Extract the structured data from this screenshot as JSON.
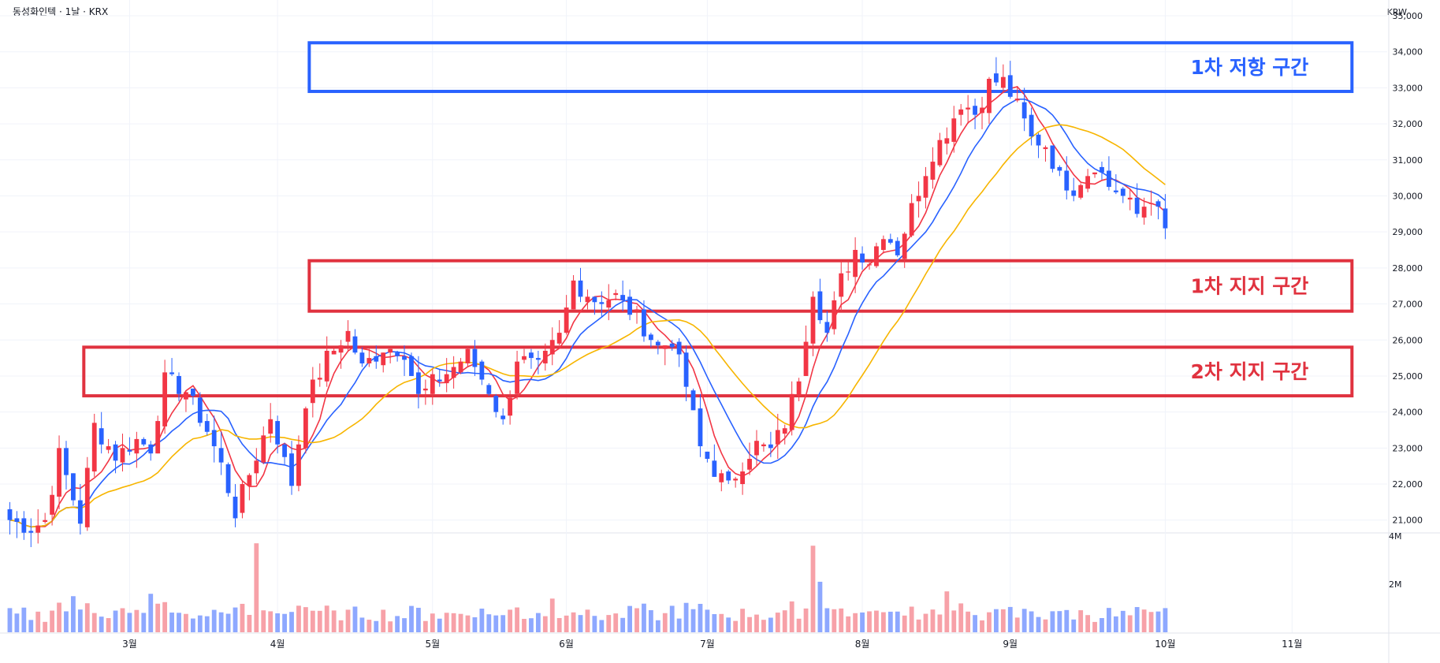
{
  "header": {
    "title": "동성화인텍 · 1날 · KRX",
    "currency": "KRW"
  },
  "colors": {
    "up": "#f23645",
    "down": "#2962ff",
    "ma_red": "#f23645",
    "ma_blue": "#2962ff",
    "ma_yellow": "#f7b500",
    "vol_up": "#f7a1a8",
    "vol_down": "#8ea8ff",
    "resist_box": "#2962ff",
    "support_box": "#e0323f"
  },
  "chart_data": {
    "type": "candlestick",
    "title": "동성화인텍 · 1날 · KRX",
    "y_axis": {
      "min": 20600,
      "max": 35000,
      "ticks": [
        21000,
        22000,
        23000,
        24000,
        25000,
        26000,
        27000,
        28000,
        29000,
        30000,
        31000,
        32000,
        33000,
        34000,
        35000
      ],
      "tick_labels": [
        "21,000",
        "22,000",
        "23,000",
        "24,000",
        "25,000",
        "26,000",
        "27,000",
        "28,000",
        "29,000",
        "30,000",
        "31,000",
        "32,000",
        "33,000",
        "34,000",
        "35,000"
      ]
    },
    "x_axis": {
      "labels": [
        "3월",
        "4월",
        "5월",
        "6월",
        "7월",
        "8월",
        "9월",
        "10월",
        "11월"
      ],
      "label_day_index": [
        17,
        38,
        60,
        79,
        99,
        121,
        142,
        164,
        182
      ],
      "total_slots": 196
    },
    "volume_axis": {
      "ticks": [
        2000000,
        4000000
      ],
      "tick_labels": [
        "2M",
        "4M"
      ],
      "max": 4000000
    },
    "zones": [
      {
        "label": "1차 저항 구간",
        "kind": "resistance",
        "low": 32900,
        "high": 34250,
        "start_index": 43,
        "end_index": 190
      },
      {
        "label": "1차 지지 구간",
        "kind": "support",
        "low": 26800,
        "high": 28200,
        "start_index": 43,
        "end_index": 190
      },
      {
        "label": "2차 지지 구간",
        "kind": "support",
        "low": 24450,
        "high": 25800,
        "start_index": 11,
        "end_index": 190
      }
    ],
    "ma_periods": [
      5,
      10,
      20
    ],
    "ohlc": [],
    "volume": []
  }
}
